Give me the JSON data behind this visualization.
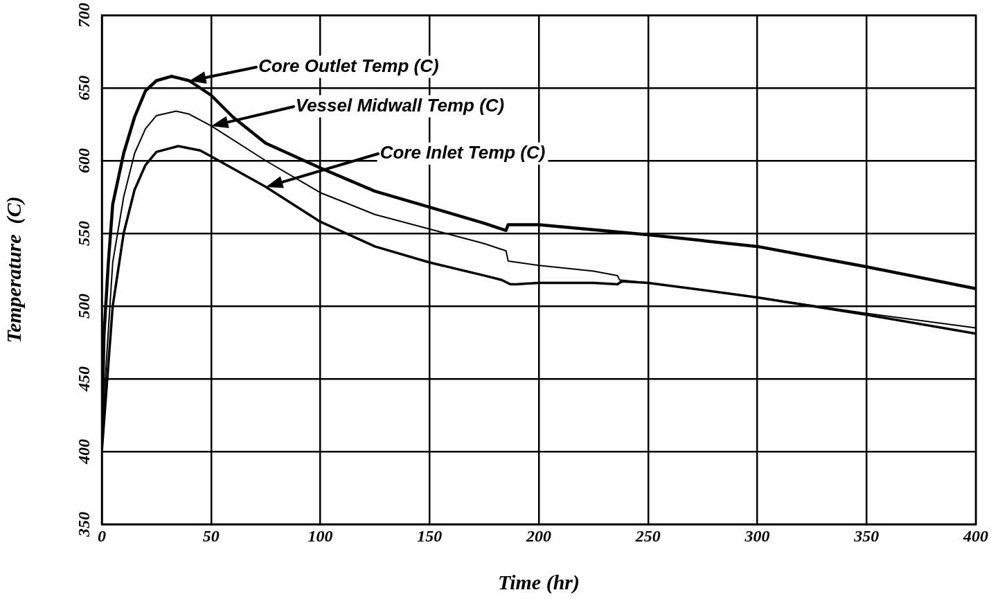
{
  "chart_data": {
    "type": "line",
    "xlabel": "Time (hr)",
    "ylabel": "Temperature  (C)",
    "xlim": [
      0,
      400
    ],
    "xticks": [
      0,
      50,
      100,
      150,
      200,
      250,
      300,
      350,
      400
    ],
    "ylim": [
      350,
      700
    ],
    "yticks": [
      350,
      400,
      450,
      500,
      550,
      600,
      650,
      700
    ],
    "grid": true,
    "legend": false,
    "marker": "none",
    "line_style": "solid",
    "series": [
      {
        "color": "#000000",
        "x": [
          0,
          1,
          3,
          5,
          10,
          15,
          20,
          25,
          32,
          40,
          50,
          60,
          75,
          100,
          125,
          150,
          175,
          185,
          186,
          200,
          250,
          300,
          350,
          400
        ],
        "values": [
          410,
          480,
          530,
          570,
          605,
          630,
          648,
          655,
          658,
          655,
          645,
          630,
          612,
          595,
          579,
          568,
          557,
          552,
          556,
          556,
          549,
          541,
          527,
          512
        ]
      },
      {
        "color": "#000000",
        "x": [
          0,
          2,
          5,
          10,
          15,
          20,
          25,
          34,
          40,
          50,
          75,
          100,
          125,
          150,
          175,
          185,
          186,
          200,
          225,
          236,
          237,
          250,
          300,
          350,
          400
        ],
        "values": [
          400,
          460,
          530,
          575,
          605,
          622,
          631,
          634,
          632,
          624,
          600,
          578,
          563,
          553,
          543,
          538,
          531,
          528,
          524,
          521,
          518,
          516,
          506,
          495,
          485
        ]
      },
      {
        "color": "#000000",
        "x": [
          0,
          2,
          5,
          10,
          15,
          20,
          25,
          35,
          45,
          50,
          75,
          100,
          125,
          150,
          175,
          183,
          187,
          190,
          200,
          225,
          236,
          238,
          250,
          300,
          350,
          400
        ],
        "values": [
          400,
          440,
          500,
          550,
          580,
          597,
          606,
          610,
          607,
          603,
          582,
          558,
          541,
          530,
          521,
          518,
          515,
          515,
          516,
          516,
          515,
          517,
          516,
          506,
          494,
          481
        ]
      }
    ],
    "annotations": [
      "Core Outlet Temp (C)",
      "Vessel Midwall Temp (C)",
      "Core Inlet Temp (C)"
    ]
  }
}
